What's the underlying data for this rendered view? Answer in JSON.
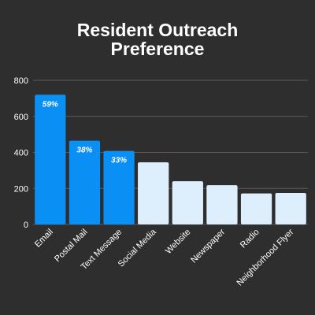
{
  "chart_data": {
    "type": "bar",
    "title_lines": [
      "Resident Outreach",
      "Preference"
    ],
    "categories": [
      "Email",
      "Postal Mail",
      "Text Message",
      "Social Media",
      "Website",
      "Newspaper",
      "Radio",
      "Neighborhood Flyer"
    ],
    "values": [
      720,
      465,
      408,
      345,
      240,
      218,
      172,
      175
    ],
    "data_labels": [
      "59%",
      "38%",
      "33%",
      "",
      "",
      "",
      "",
      ""
    ],
    "highlighted_count": 3,
    "ylim": [
      0,
      800
    ],
    "yticks": [
      0,
      200,
      400,
      600,
      800
    ],
    "xlabel": "",
    "ylabel": "",
    "grid": true,
    "colors": {
      "background": "#2e2e2e",
      "highlight": "#0a8ff5",
      "other": "#ddeefd",
      "text": "#ffffff",
      "grid": "#5a5a5a"
    }
  }
}
